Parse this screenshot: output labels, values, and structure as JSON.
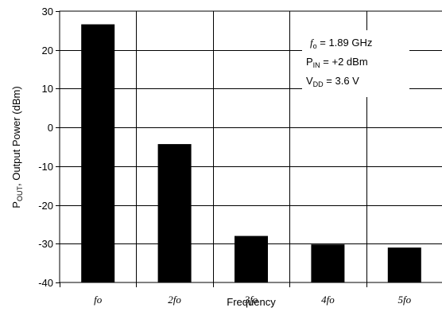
{
  "chart_data": {
    "type": "bar",
    "categories": [
      {
        "coef": "",
        "sym": "fo"
      },
      {
        "coef": "2",
        "sym": "fo"
      },
      {
        "coef": "3",
        "sym": "fo"
      },
      {
        "coef": "4",
        "sym": "fo"
      },
      {
        "coef": "5",
        "sym": "fo"
      }
    ],
    "values": [
      26.6,
      -4.3,
      -28.0,
      -30.2,
      -31.0
    ],
    "ylim": [
      -40,
      30
    ],
    "yticks": [
      30,
      20,
      10,
      0,
      -10,
      -20,
      -30,
      -40
    ],
    "grid": true,
    "bar_color": "#000000",
    "xlabel": "Frequency",
    "ylabel": {
      "main": "P",
      "sub": "OUT",
      "rest": ", Output Power (dBm)"
    },
    "annotations": {
      "line1": {
        "sym": "f",
        "sub": "o",
        "rest": " = 1.89 GHz"
      },
      "line2": {
        "sym": "P",
        "sub": "IN",
        "rest": " = +2 dBm"
      },
      "line3": {
        "sym": "V",
        "sub": "DD",
        "rest": " = 3.6 V"
      }
    }
  }
}
